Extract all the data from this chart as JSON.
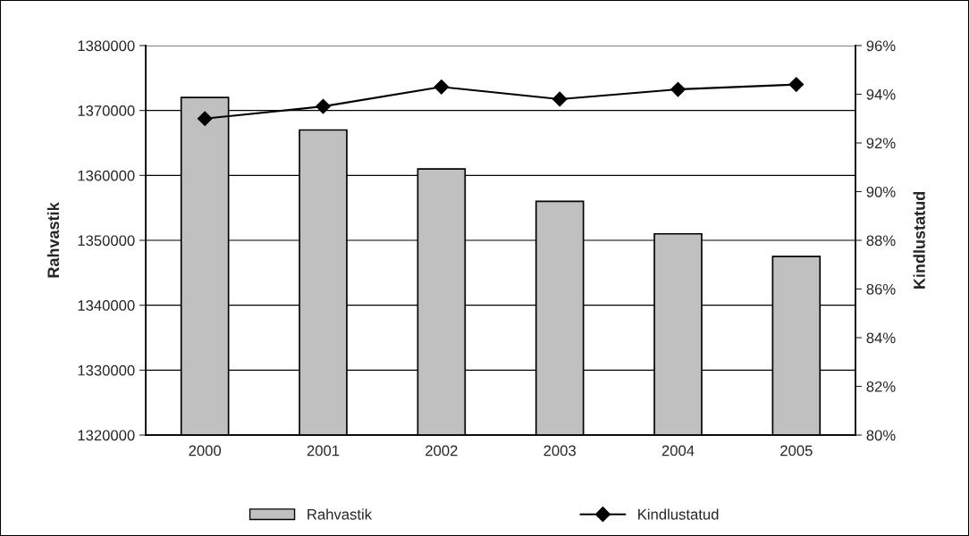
{
  "chart_data": {
    "type": "bar",
    "categories": [
      "2000",
      "2001",
      "2002",
      "2003",
      "2004",
      "2005"
    ],
    "series": [
      {
        "name": "Rahvastik",
        "color": "#c0c0c0",
        "values": [
          1372000,
          1367000,
          1361000,
          1356000,
          1351000,
          1347500
        ]
      },
      {
        "name": "Kindlustatud",
        "type": "line",
        "axis": "y2",
        "color": "#000000",
        "marker": "diamond",
        "values": [
          93.0,
          93.5,
          94.3,
          93.8,
          94.2,
          94.4
        ]
      }
    ],
    "ylabel": "Rahvastik",
    "y2label": "Kindlustatud",
    "ylim": [
      1320000,
      1380000
    ],
    "yticks": [
      1320000,
      1330000,
      1340000,
      1350000,
      1360000,
      1370000,
      1380000
    ],
    "y2lim": [
      80,
      96
    ],
    "y2ticks": [
      {
        "value": 80,
        "label": "80%"
      },
      {
        "value": 82,
        "label": "82%"
      },
      {
        "value": 84,
        "label": "84%"
      },
      {
        "value": 86,
        "label": "86%"
      },
      {
        "value": 88,
        "label": "88%"
      },
      {
        "value": 90,
        "label": "90%"
      },
      {
        "value": 92,
        "label": "92%"
      },
      {
        "value": 94,
        "label": "94%"
      },
      {
        "value": 96,
        "label": "96%"
      }
    ],
    "grid": "y",
    "legend": "bottom"
  }
}
